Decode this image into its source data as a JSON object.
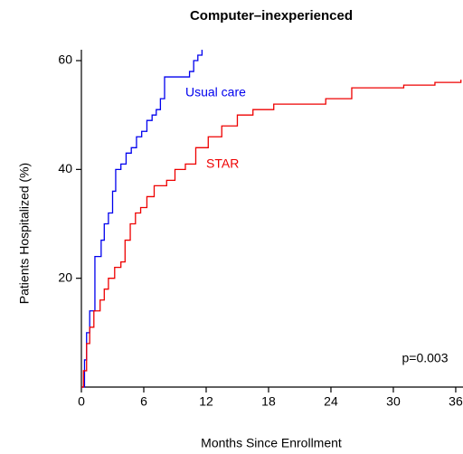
{
  "chart_data": {
    "type": "line",
    "step": true,
    "title": "Computer–inexperienced",
    "xlabel": "Months Since Enrollment",
    "ylabel": "Patients Hospitalized (%)",
    "xlim": [
      0,
      36.7
    ],
    "ylim": [
      0,
      62
    ],
    "xticks": [
      0,
      6,
      12,
      18,
      24,
      30,
      36
    ],
    "yticks": [
      20,
      40,
      60
    ],
    "annotation": "p=0.003",
    "series": [
      {
        "name": "Usual care",
        "color": "#0000ee",
        "x": [
          0,
          0.3,
          0.5,
          0.8,
          1.3,
          1.9,
          2.2,
          2.6,
          3.0,
          3.3,
          3.8,
          4.3,
          4.8,
          5.3,
          5.8,
          6.3,
          6.8,
          7.2,
          7.6,
          8.0,
          10.4,
          10.8,
          11.2,
          11.6
        ],
        "values": [
          0,
          5,
          10,
          14,
          24,
          27,
          30,
          32,
          36,
          40,
          41,
          43,
          44,
          46,
          47,
          49,
          50,
          51,
          53,
          57,
          58,
          60,
          61,
          62
        ]
      },
      {
        "name": "STAR",
        "color": "#ee0000",
        "x": [
          0,
          0.2,
          0.5,
          0.8,
          1.2,
          1.8,
          2.2,
          2.6,
          3.2,
          3.8,
          4.2,
          4.7,
          5.2,
          5.7,
          6.3,
          7.0,
          8.2,
          9.0,
          10.0,
          11.0,
          12.2,
          13.5,
          15.0,
          16.5,
          18.5,
          23.5,
          26.0,
          31.0,
          34.0,
          36.5
        ],
        "values": [
          0,
          3,
          8,
          11,
          14,
          16,
          18,
          20,
          22,
          23,
          27,
          30,
          32,
          33,
          35,
          37,
          38,
          40,
          41,
          44,
          46,
          48,
          50,
          51,
          52,
          53,
          55,
          55.5,
          56,
          56.5
        ]
      }
    ]
  }
}
